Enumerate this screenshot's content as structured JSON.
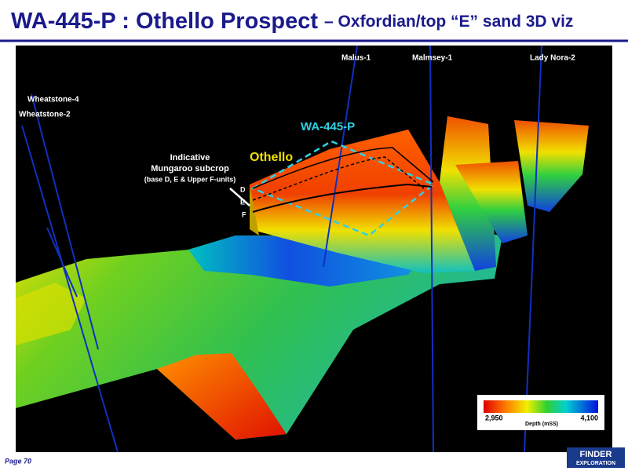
{
  "header": {
    "title": "WA-445-P : Othello Prospect",
    "subtitle": "– Oxfordian/top “E” sand 3D viz"
  },
  "wells": [
    "Malus-1",
    "Malmsey-1",
    "Lady Nora-2",
    "Wheatstone-4",
    "Wheatstone-2"
  ],
  "annotations": {
    "permit": "WA-445-P",
    "prospect": "Othello",
    "subcrop": [
      "Indicative",
      "Mungaroo subcrop",
      "(base D, E & Upper F-units)"
    ],
    "units": [
      "D",
      "E",
      "F"
    ]
  },
  "legend": {
    "min": "2,950",
    "max": "4,100",
    "label": "Depth (mSS)"
  },
  "footer": {
    "page": "Page 70",
    "logo": [
      "FINDER",
      "EXPLORATION"
    ]
  }
}
